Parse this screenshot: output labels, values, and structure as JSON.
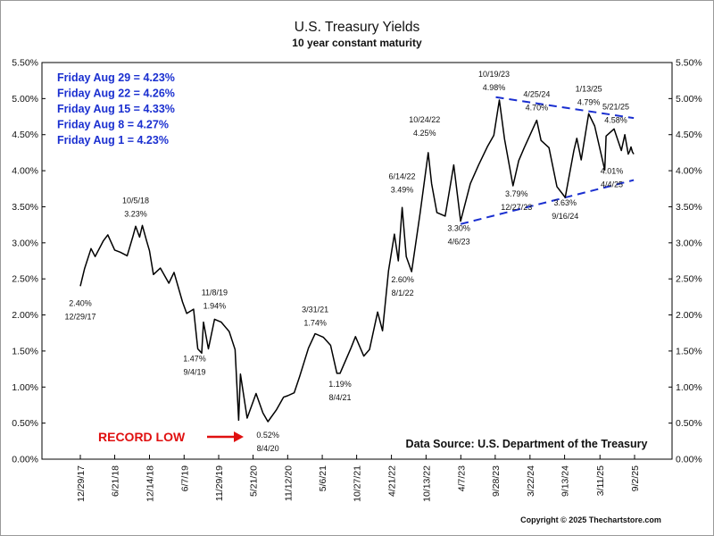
{
  "chart_data": {
    "type": "line",
    "title": "U.S. Treasury Yields",
    "subtitle": "10 year constant maturity",
    "ylim": [
      0,
      5.5
    ],
    "y_ticks": [
      "0.00%",
      "0.50%",
      "1.00%",
      "1.50%",
      "2.00%",
      "2.50%",
      "3.00%",
      "3.50%",
      "4.00%",
      "4.50%",
      "5.00%",
      "5.50%"
    ],
    "x_ticks": [
      "12/29/17",
      "6/21/18",
      "12/14/18",
      "6/7/19",
      "11/29/19",
      "5/21/20",
      "11/12/20",
      "5/6/21",
      "10/27/21",
      "4/21/22",
      "10/13/22",
      "4/7/23",
      "9/28/23",
      "3/22/24",
      "9/13/24",
      "3/11/25",
      "9/2/25"
    ],
    "grid": false,
    "series": [
      {
        "values": [
          [
            "2017-12-29",
            2.4
          ],
          [
            "2018-01-19",
            2.64
          ],
          [
            "2018-02-21",
            2.92
          ],
          [
            "2018-03-14",
            2.81
          ],
          [
            "2018-04-25",
            3.03
          ],
          [
            "2018-05-17",
            3.11
          ],
          [
            "2018-06-21",
            2.9
          ],
          [
            "2018-07-19",
            2.87
          ],
          [
            "2018-08-23",
            2.82
          ],
          [
            "2018-09-20",
            3.08
          ],
          [
            "2018-10-05",
            3.23
          ],
          [
            "2018-10-25",
            3.08
          ],
          [
            "2018-11-08",
            3.24
          ],
          [
            "2018-11-29",
            3.03
          ],
          [
            "2018-12-14",
            2.89
          ],
          [
            "2019-01-03",
            2.56
          ],
          [
            "2019-02-07",
            2.65
          ],
          [
            "2019-03-22",
            2.44
          ],
          [
            "2019-04-17",
            2.59
          ],
          [
            "2019-05-30",
            2.18
          ],
          [
            "2019-06-20",
            2.02
          ],
          [
            "2019-07-25",
            2.08
          ],
          [
            "2019-08-15",
            1.53
          ],
          [
            "2019-09-04",
            1.47
          ],
          [
            "2019-09-13",
            1.9
          ],
          [
            "2019-10-08",
            1.53
          ],
          [
            "2019-11-08",
            1.94
          ],
          [
            "2019-12-12",
            1.9
          ],
          [
            "2020-01-21",
            1.77
          ],
          [
            "2020-02-20",
            1.52
          ],
          [
            "2020-03-09",
            0.54
          ],
          [
            "2020-03-18",
            1.18
          ],
          [
            "2020-04-21",
            0.57
          ],
          [
            "2020-06-05",
            0.91
          ],
          [
            "2020-07-10",
            0.64
          ],
          [
            "2020-08-04",
            0.52
          ],
          [
            "2020-09-15",
            0.68
          ],
          [
            "2020-10-22",
            0.86
          ],
          [
            "2020-11-12",
            0.88
          ],
          [
            "2020-12-15",
            0.92
          ],
          [
            "2021-01-12",
            1.15
          ],
          [
            "2021-02-25",
            1.54
          ],
          [
            "2021-03-31",
            1.74
          ],
          [
            "2021-05-12",
            1.69
          ],
          [
            "2021-06-17",
            1.58
          ],
          [
            "2021-07-19",
            1.19
          ],
          [
            "2021-08-04",
            1.19
          ],
          [
            "2021-09-28",
            1.54
          ],
          [
            "2021-10-21",
            1.7
          ],
          [
            "2021-12-02",
            1.43
          ],
          [
            "2021-12-31",
            1.52
          ],
          [
            "2022-02-10",
            2.04
          ],
          [
            "2022-03-07",
            1.78
          ],
          [
            "2022-04-06",
            2.61
          ],
          [
            "2022-05-06",
            3.12
          ],
          [
            "2022-05-26",
            2.75
          ],
          [
            "2022-06-14",
            3.49
          ],
          [
            "2022-07-05",
            2.81
          ],
          [
            "2022-08-01",
            2.6
          ],
          [
            "2022-09-13",
            3.41
          ],
          [
            "2022-10-24",
            4.25
          ],
          [
            "2022-11-10",
            3.82
          ],
          [
            "2022-12-07",
            3.42
          ],
          [
            "2023-01-18",
            3.37
          ],
          [
            "2023-03-02",
            4.08
          ],
          [
            "2023-04-06",
            3.3
          ],
          [
            "2023-05-25",
            3.82
          ],
          [
            "2023-07-06",
            4.08
          ],
          [
            "2023-08-21",
            4.34
          ],
          [
            "2023-09-21",
            4.49
          ],
          [
            "2023-10-19",
            4.98
          ],
          [
            "2023-11-14",
            4.44
          ],
          [
            "2023-12-27",
            3.79
          ],
          [
            "2024-01-25",
            4.14
          ],
          [
            "2024-02-22",
            4.32
          ],
          [
            "2024-04-25",
            4.7
          ],
          [
            "2024-05-17",
            4.42
          ],
          [
            "2024-06-26",
            4.32
          ],
          [
            "2024-08-05",
            3.78
          ],
          [
            "2024-09-16",
            3.63
          ],
          [
            "2024-10-30",
            4.28
          ],
          [
            "2024-11-14",
            4.45
          ],
          [
            "2024-12-06",
            4.15
          ],
          [
            "2025-01-13",
            4.79
          ],
          [
            "2025-02-12",
            4.62
          ],
          [
            "2025-04-04",
            4.01
          ],
          [
            "2025-04-11",
            4.48
          ],
          [
            "2025-05-21",
            4.58
          ],
          [
            "2025-06-27",
            4.28
          ],
          [
            "2025-07-15",
            4.5
          ],
          [
            "2025-08-01",
            4.23
          ],
          [
            "2025-08-08",
            4.27
          ],
          [
            "2025-08-15",
            4.33
          ],
          [
            "2025-08-22",
            4.26
          ],
          [
            "2025-08-29",
            4.23
          ]
        ]
      }
    ],
    "legend": [
      "Friday Aug 29 = 4.23%",
      "Friday Aug 22 = 4.26%",
      "Friday Aug 15 = 4.33%",
      "Friday Aug 8 = 4.27%",
      "Friday Aug 1 = 4.23%"
    ],
    "annotations": [
      {
        "date": "12/29/17",
        "value": "2.40%"
      },
      {
        "date": "10/5/18",
        "value": "3.23%"
      },
      {
        "date": "11/8/19",
        "value": "1.94%"
      },
      {
        "date": "9/4/19",
        "value": "1.47%"
      },
      {
        "date": "8/4/20",
        "value": "0.52%"
      },
      {
        "date": "3/31/21",
        "value": "1.74%"
      },
      {
        "date": "8/4/21",
        "value": "1.19%"
      },
      {
        "date": "6/14/22",
        "value": "3.49%"
      },
      {
        "date": "8/1/22",
        "value": "2.60%"
      },
      {
        "date": "10/24/22",
        "value": "4.25%"
      },
      {
        "date": "4/6/23",
        "value": "3.30%"
      },
      {
        "date": "10/19/23",
        "value": "4.98%"
      },
      {
        "date": "12/27/23",
        "value": "3.79%"
      },
      {
        "date": "4/25/24",
        "value": "4.70%"
      },
      {
        "date": "9/16/24",
        "value": "3.63%"
      },
      {
        "date": "1/13/25",
        "value": "4.79%"
      },
      {
        "date": "5/21/25",
        "value": "4.58%"
      },
      {
        "date": "4/4/25",
        "value": "4.01%"
      }
    ],
    "trendlines": [
      {
        "from": [
          "2023-10-01",
          5.02
        ],
        "to": [
          "2025-08-29",
          4.73
        ]
      },
      {
        "from": [
          "2023-04-06",
          3.26
        ],
        "to": [
          "2025-08-29",
          3.87
        ]
      }
    ],
    "record_low_label": "RECORD LOW",
    "source": "Data Source:  U.S. Department of the Treasury",
    "copyright": "Copyright © 2025 Thechartstore.com",
    "colors": {
      "line": "#000000",
      "legend": "#1a2fd0",
      "trend": "#1a2fd0",
      "record": "#e01010"
    }
  }
}
